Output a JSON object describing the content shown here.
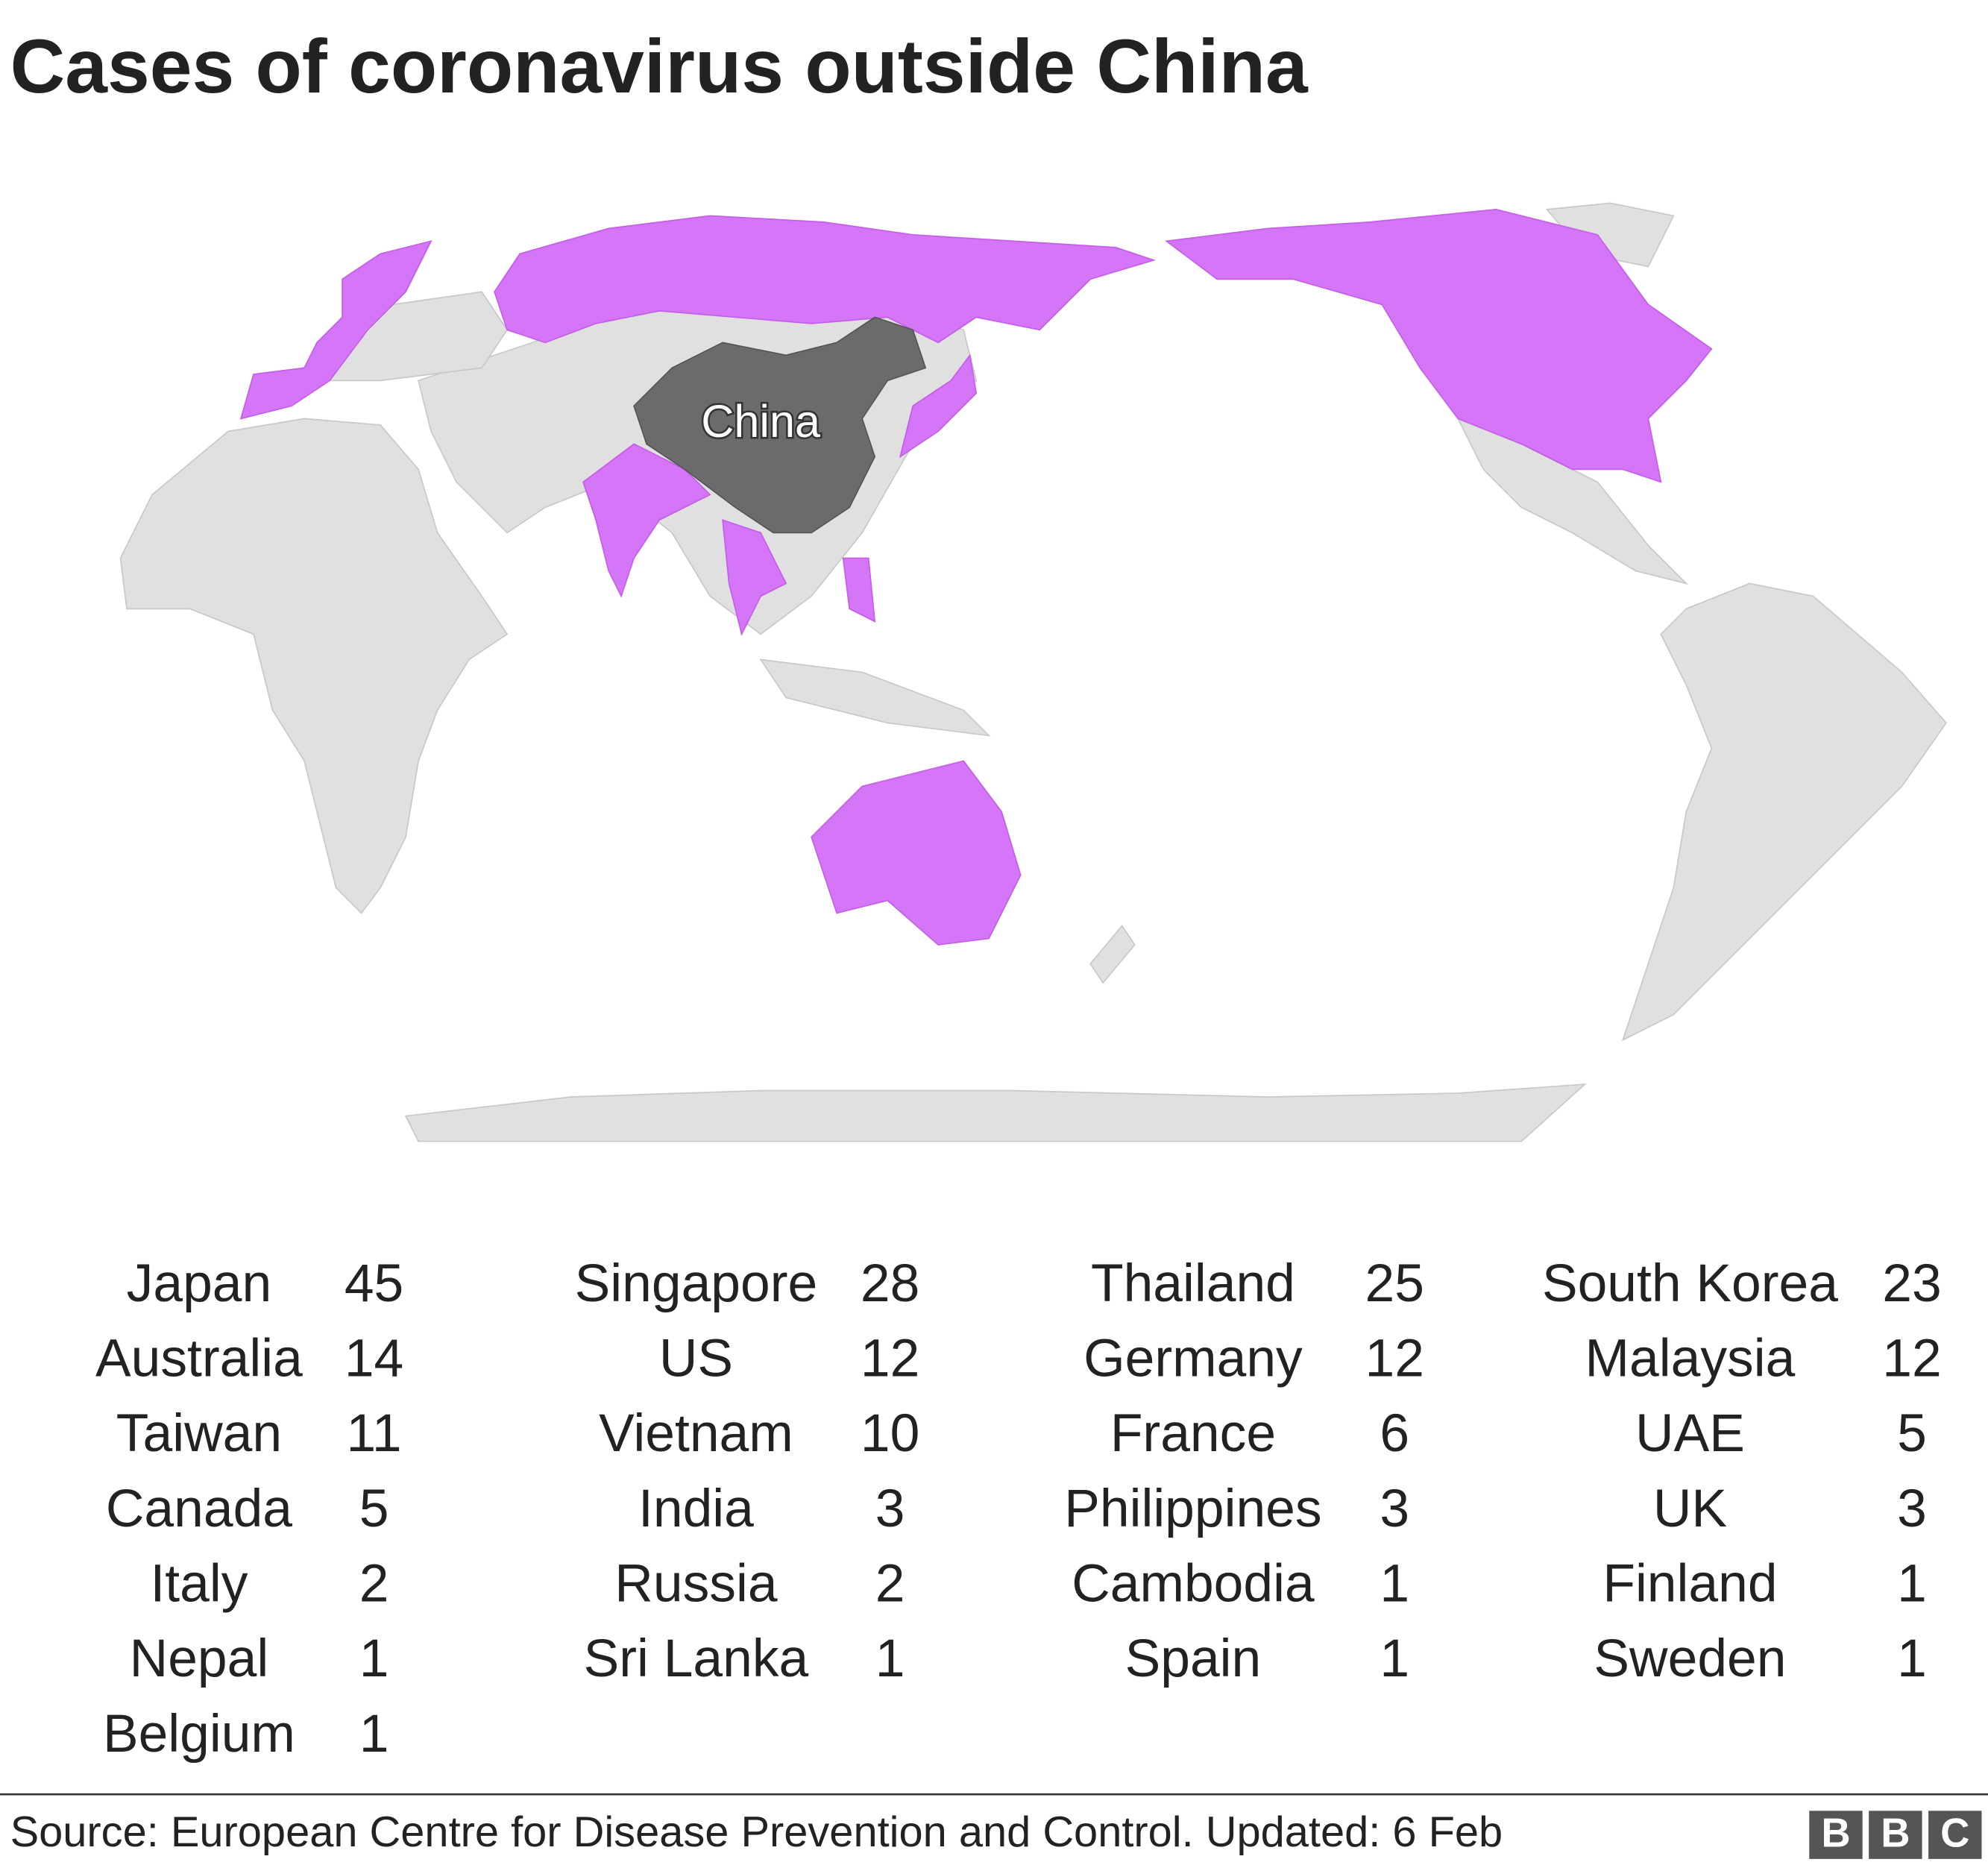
{
  "title": "Cases of coronavirus outside China",
  "map": {
    "label": "China"
  },
  "table": {
    "columns": [
      [
        {
          "country": "Japan",
          "cases": 45
        },
        {
          "country": "Australia",
          "cases": 14
        },
        {
          "country": "Taiwan",
          "cases": 11
        },
        {
          "country": "Canada",
          "cases": 5
        },
        {
          "country": "Italy",
          "cases": 2
        },
        {
          "country": "Nepal",
          "cases": 1
        },
        {
          "country": "Belgium",
          "cases": 1
        }
      ],
      [
        {
          "country": "Singapore",
          "cases": 28
        },
        {
          "country": "US",
          "cases": 12
        },
        {
          "country": "Vietnam",
          "cases": 10
        },
        {
          "country": "India",
          "cases": 3
        },
        {
          "country": "Russia",
          "cases": 2
        },
        {
          "country": "Sri Lanka",
          "cases": 1
        }
      ],
      [
        {
          "country": "Thailand",
          "cases": 25
        },
        {
          "country": "Germany",
          "cases": 12
        },
        {
          "country": "France",
          "cases": 6
        },
        {
          "country": "Philippines",
          "cases": 3
        },
        {
          "country": "Cambodia",
          "cases": 1
        },
        {
          "country": "Spain",
          "cases": 1
        }
      ],
      [
        {
          "country": "South Korea",
          "cases": 23
        },
        {
          "country": "Malaysia",
          "cases": 12
        },
        {
          "country": "UAE",
          "cases": 5
        },
        {
          "country": "UK",
          "cases": 3
        },
        {
          "country": "Finland",
          "cases": 1
        },
        {
          "country": "Sweden",
          "cases": 1
        }
      ]
    ]
  },
  "source": "Source: European Centre for Disease Prevention and Control. Updated: 6 Feb",
  "logo": [
    "B",
    "B",
    "C"
  ]
}
